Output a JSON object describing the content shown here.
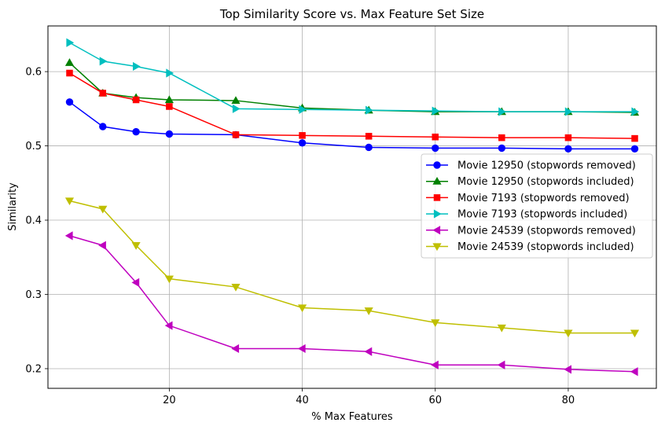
{
  "chart_data": {
    "type": "line",
    "title": "Top Similarity Score vs. Max Feature Set Size",
    "xlabel": "% Max Features",
    "ylabel": "Similarity",
    "xlim": [
      1.75,
      93.25
    ],
    "ylim": [
      0.1735,
      0.6615
    ],
    "xticks": [
      20,
      40,
      60,
      80
    ],
    "yticks": [
      0.2,
      0.3,
      0.4,
      0.5,
      0.6
    ],
    "xtick_labels": [
      "20",
      "40",
      "60",
      "80"
    ],
    "ytick_labels": [
      "0.2",
      "0.3",
      "0.4",
      "0.5",
      "0.6"
    ],
    "grid": true,
    "legend_position": "center-right",
    "x": [
      5,
      10,
      15,
      20,
      30,
      40,
      50,
      60,
      70,
      80,
      90
    ],
    "series": [
      {
        "name": "Movie 12950 (stopwords removed)",
        "color": "#0000ff",
        "marker": "circle",
        "values": [
          0.559,
          0.526,
          0.519,
          0.516,
          0.515,
          0.504,
          0.498,
          0.497,
          0.497,
          0.496,
          0.496
        ]
      },
      {
        "name": "Movie 12950 (stopwords included)",
        "color": "#008000",
        "marker": "triangle-up",
        "values": [
          0.612,
          0.571,
          0.565,
          0.562,
          0.561,
          0.551,
          0.548,
          0.546,
          0.546,
          0.546,
          0.545
        ]
      },
      {
        "name": "Movie 7193 (stopwords removed)",
        "color": "#ff0000",
        "marker": "square",
        "values": [
          0.598,
          0.571,
          0.562,
          0.553,
          0.515,
          0.514,
          0.513,
          0.512,
          0.511,
          0.511,
          0.51
        ]
      },
      {
        "name": "Movie 7193 (stopwords included)",
        "color": "#00bfbf",
        "marker": "triangle-right",
        "values": [
          0.639,
          0.614,
          0.607,
          0.598,
          0.55,
          0.549,
          0.548,
          0.547,
          0.546,
          0.546,
          0.546
        ]
      },
      {
        "name": "Movie 24539 (stopwords removed)",
        "color": "#bf00bf",
        "marker": "triangle-left",
        "values": [
          0.379,
          0.366,
          0.316,
          0.258,
          0.227,
          0.227,
          0.223,
          0.205,
          0.205,
          0.199,
          0.196
        ]
      },
      {
        "name": "Movie 24539 (stopwords included)",
        "color": "#bfbf00",
        "marker": "triangle-down",
        "values": [
          0.426,
          0.415,
          0.366,
          0.321,
          0.31,
          0.282,
          0.278,
          0.262,
          0.255,
          0.248,
          0.248
        ]
      }
    ]
  }
}
